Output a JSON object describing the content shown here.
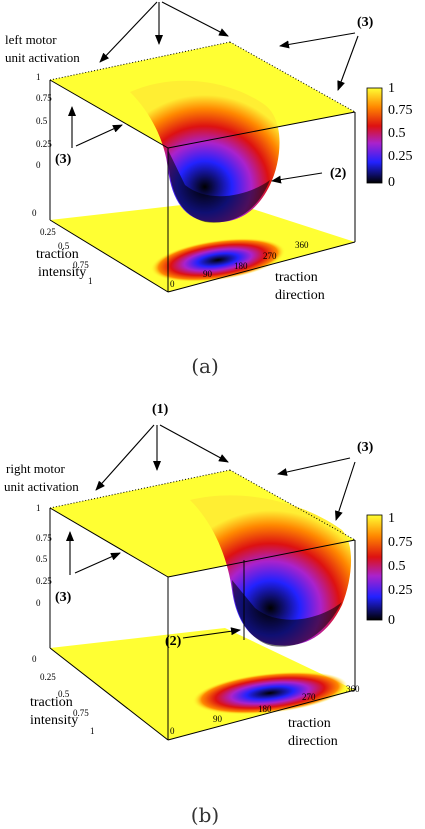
{
  "chart_data": [
    {
      "type": "surface3d",
      "caption": "(a)",
      "zlabel": "left motor\nunit activation",
      "xlabel": "traction\ndirection",
      "ylabel": "traction\nintensity",
      "x_ticks": [
        "0",
        "90",
        "180",
        "270",
        "360"
      ],
      "y_ticks": [
        "0",
        "0.25",
        "0.5",
        "0.75",
        "1"
      ],
      "z_ticks": [
        "0",
        "0.25",
        "0.5",
        "0.75",
        "1"
      ],
      "colorbar_ticks": [
        "1",
        "0.75",
        "0.5",
        "0.25",
        "0"
      ],
      "colorbar_range": [
        0,
        1
      ],
      "annotations": [
        "(3)",
        "(3)",
        "(2)"
      ],
      "well_center_direction": 180,
      "surface_description_values": {
        "plateau": 1,
        "minimum": 0
      }
    },
    {
      "type": "surface3d",
      "caption": "(b)",
      "zlabel": "right motor\nunit activation",
      "xlabel": "traction\ndirection",
      "ylabel": "traction\nintensity",
      "x_ticks": [
        "0",
        "90",
        "180",
        "270",
        "360"
      ],
      "y_ticks": [
        "0",
        "0.25",
        "0.5",
        "0.75",
        "1"
      ],
      "z_ticks": [
        "0",
        "0.25",
        "0.5",
        "0.75",
        "1"
      ],
      "colorbar_ticks": [
        "1",
        "0.75",
        "0.5",
        "0.25",
        "0"
      ],
      "colorbar_range": [
        0,
        1
      ],
      "annotations": [
        "(1)",
        "(3)",
        "(3)",
        "(2)"
      ],
      "well_center_direction": 300,
      "surface_description_values": {
        "plateau": 1,
        "minimum": 0
      }
    }
  ],
  "colors": {
    "plateau": "#ffff33",
    "colormap": [
      "#000000",
      "#2222ff",
      "#aa22cc",
      "#dd1111",
      "#ff8800",
      "#ffff33"
    ]
  }
}
